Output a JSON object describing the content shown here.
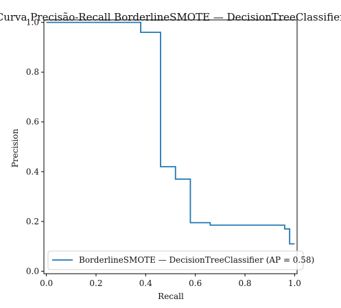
{
  "chart_data": {
    "type": "line",
    "title": "Curva Precisão-Recall BorderlineSMOTE — DecisionTreeClassifier",
    "xlabel": "Recall",
    "ylabel": "Precision",
    "xlim": [
      0,
      1
    ],
    "ylim": [
      0,
      1
    ],
    "xticks": [
      0.0,
      0.2,
      0.4,
      0.6,
      0.8,
      1.0
    ],
    "xtick_labels": [
      "0.0",
      "0.2",
      "0.4",
      "0.6",
      "0.8",
      "1.0"
    ],
    "yticks": [
      0.0,
      0.2,
      0.4,
      0.6,
      0.8,
      1.0
    ],
    "ytick_labels": [
      "0.0",
      "0.2",
      "0.4",
      "0.6",
      "0.8",
      "1.0"
    ],
    "grid": false,
    "legend": {
      "placement": "lower-right",
      "entries": [
        "BorderlineSMOTE — DecisionTreeClassifier (AP = 0.58)"
      ]
    },
    "series": [
      {
        "name": "BorderlineSMOTE — DecisionTreeClassifier (AP = 0.58)",
        "color": "#1f77b4",
        "step": true,
        "x": [
          0.0,
          0.38,
          0.38,
          0.46,
          0.46,
          0.52,
          0.52,
          0.58,
          0.58,
          0.66,
          0.66,
          0.96,
          0.96,
          0.98,
          0.98,
          1.0
        ],
        "y": [
          1.0,
          1.0,
          0.96,
          0.96,
          0.42,
          0.42,
          0.37,
          0.37,
          0.195,
          0.195,
          0.185,
          0.185,
          0.17,
          0.17,
          0.11,
          0.11
        ]
      }
    ]
  }
}
